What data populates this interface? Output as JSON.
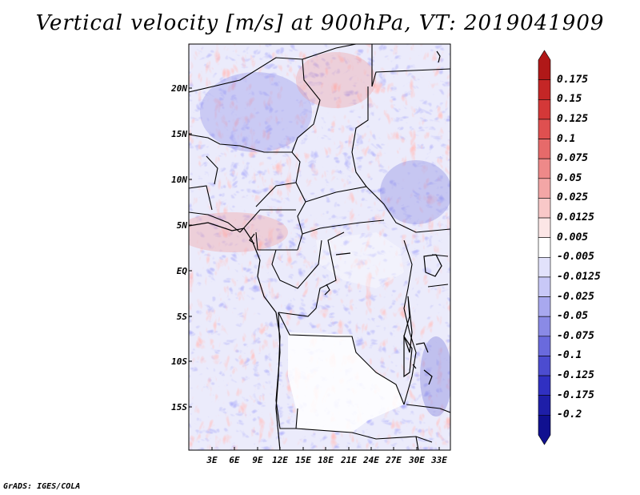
{
  "title": "Vertical velocity [m/s] at 900hPa, VT: 2019041909",
  "lat_ticks": [
    "20N",
    "15N",
    "10N",
    "5N",
    "EQ",
    "5S",
    "10S",
    "15S"
  ],
  "lon_ticks": [
    "3E",
    "6E",
    "9E",
    "12E",
    "15E",
    "18E",
    "21E",
    "24E",
    "27E",
    "30E",
    "33E"
  ],
  "colorbar": {
    "levels": [
      "0.175",
      "0.15",
      "0.125",
      "0.1",
      "0.075",
      "0.05",
      "0.025",
      "0.0125",
      "0.005",
      "-0.005",
      "-0.0125",
      "-0.025",
      "-0.05",
      "-0.075",
      "-0.1",
      "-0.125",
      "-0.175",
      "-0.2"
    ],
    "colors": [
      "#b01818",
      "#c42626",
      "#d43838",
      "#df5050",
      "#e66a6a",
      "#ee8989",
      "#f3a6a6",
      "#f8c8c8",
      "#fce6e6",
      "#ffffff",
      "#e2e2fb",
      "#c8c8f7",
      "#a8a8ef",
      "#8a8ae6",
      "#6a6add",
      "#4c4cd0",
      "#3030c2",
      "#1e1ea8",
      "#101090"
    ]
  },
  "credit": "GrADS: IGES/COLA"
}
